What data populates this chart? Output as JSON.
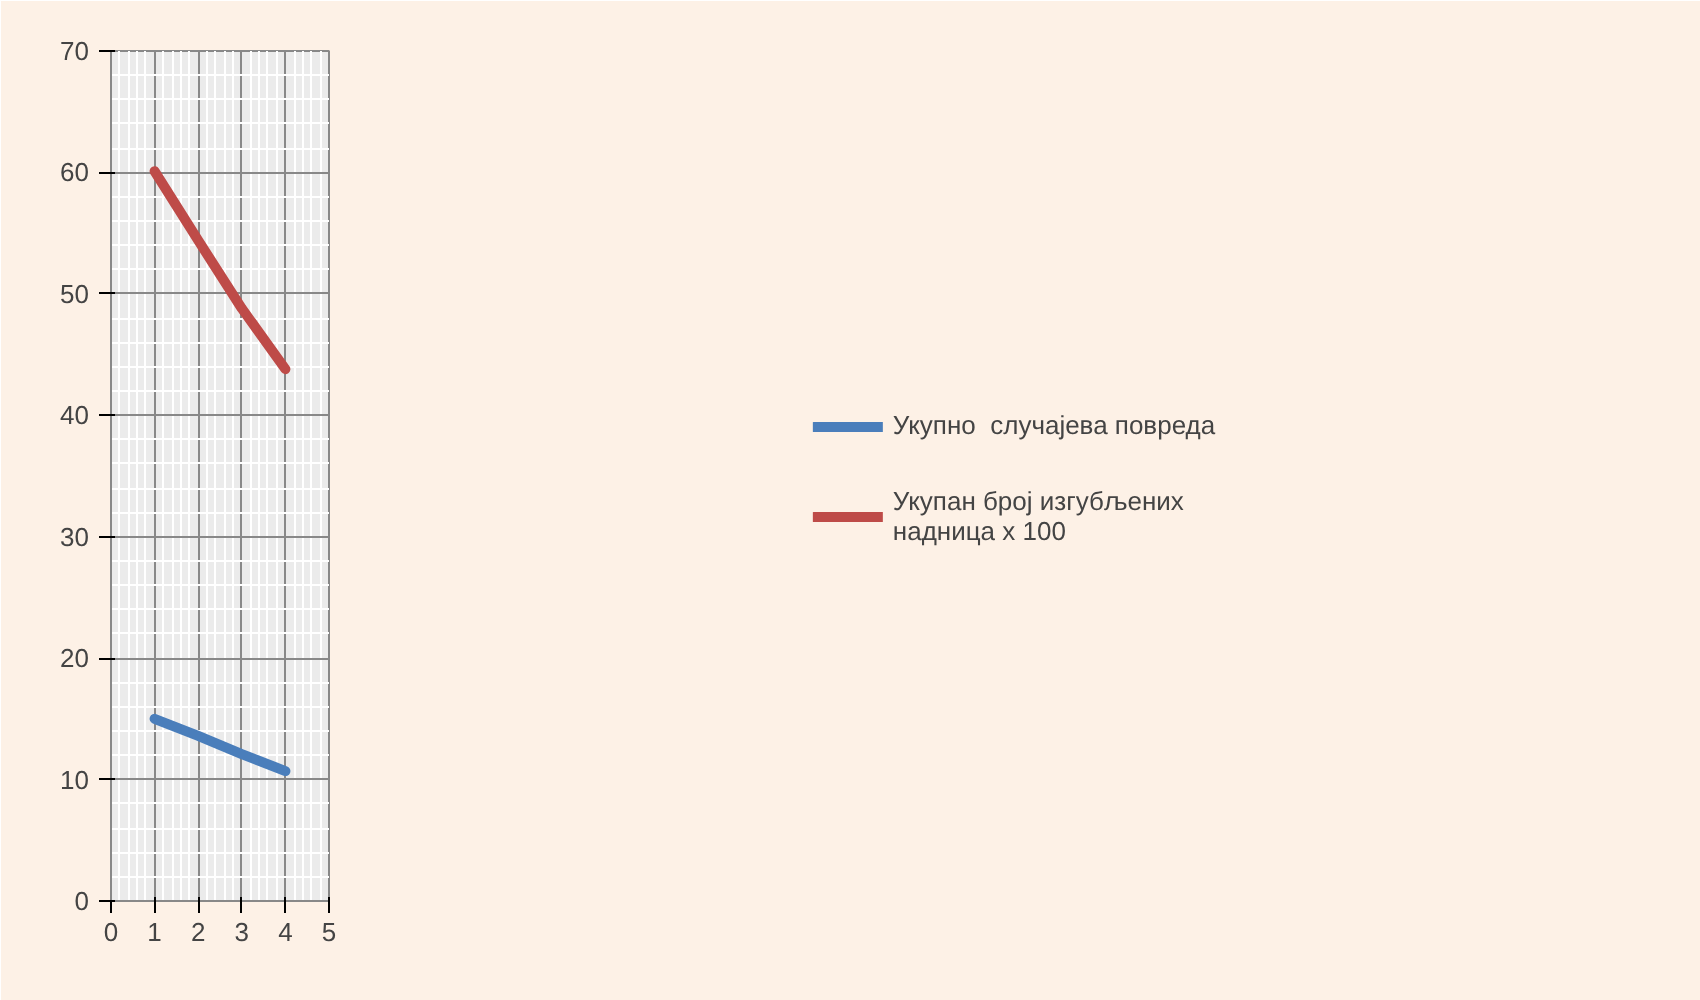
{
  "chart_data": {
    "type": "line",
    "x": [
      1,
      2,
      3,
      4
    ],
    "series": [
      {
        "name": "Укупно  случајева повреда",
        "color": "#4a7ebb",
        "values": [
          15.0,
          13.6,
          12.1,
          10.7
        ]
      },
      {
        "name": "Укупан број изгубљених надница х 100",
        "color": "#be4b48",
        "values": [
          60.1,
          54.4,
          48.8,
          43.8
        ]
      }
    ],
    "xlim": [
      0,
      5
    ],
    "xticks": [
      0,
      1,
      2,
      3,
      4,
      5
    ],
    "ylim": [
      0,
      70
    ],
    "yticks": [
      0,
      10,
      20,
      30,
      40,
      50,
      60,
      70
    ],
    "grid": true,
    "legend": "right",
    "marker": "none",
    "line_style": "solid"
  }
}
